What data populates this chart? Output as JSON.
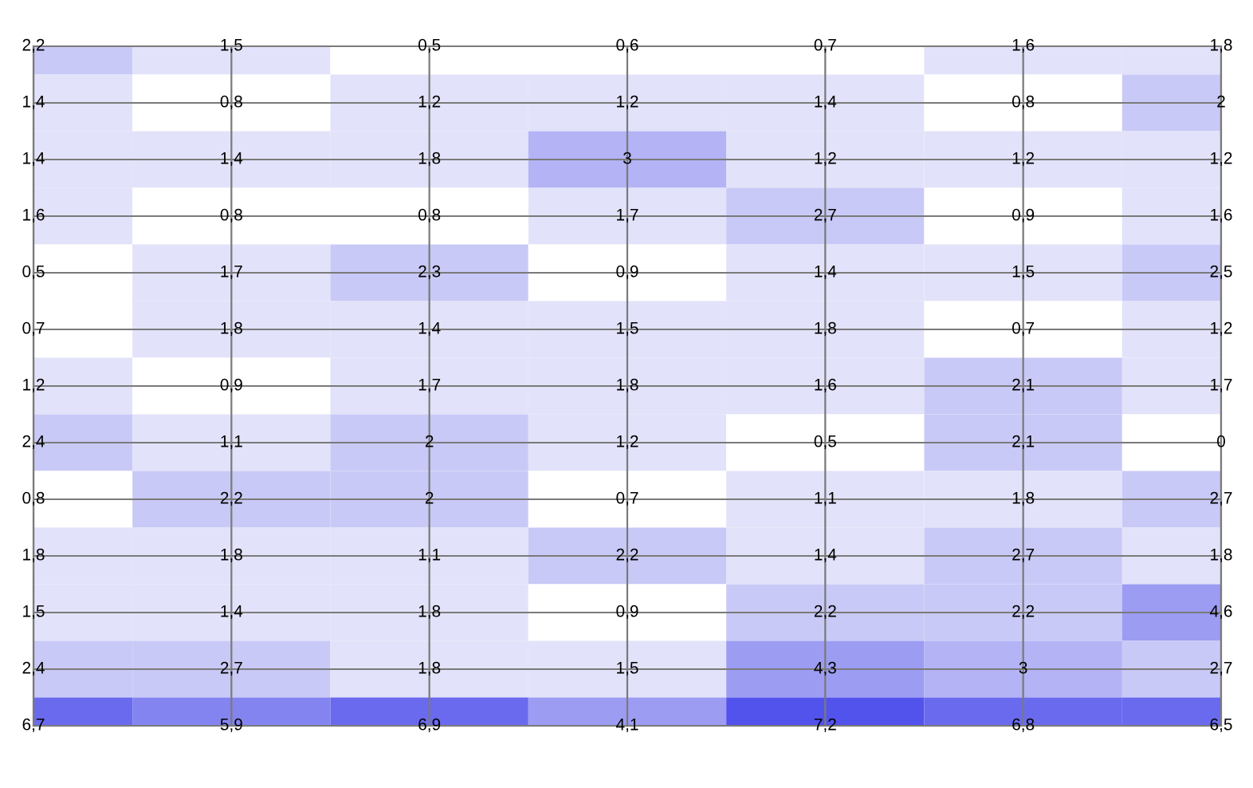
{
  "chart_data": {
    "type": "heatmap",
    "categories": [
      null,
      null,
      null,
      null,
      null,
      null,
      null
    ],
    "y_categories": [
      null,
      null,
      null,
      null,
      null,
      null,
      null,
      null,
      null,
      null,
      null,
      null,
      null
    ],
    "cells": [
      [
        2.2,
        1.5,
        0.5,
        0.6,
        0.7,
        1.6,
        1.8
      ],
      [
        1.4,
        0.8,
        1.2,
        1.2,
        1.4,
        0.8,
        2
      ],
      [
        1.4,
        1.4,
        1.8,
        3,
        1.2,
        1.2,
        1.2
      ],
      [
        1.6,
        0.8,
        0.8,
        1.7,
        2.7,
        0.9,
        1.6
      ],
      [
        0.5,
        1.7,
        2.3,
        0.9,
        1.4,
        1.5,
        2.5
      ],
      [
        0.7,
        1.8,
        1.4,
        1.5,
        1.8,
        0.7,
        1.2
      ],
      [
        1.2,
        0.9,
        1.7,
        1.8,
        1.6,
        2.1,
        1.7
      ],
      [
        2.4,
        1.1,
        2,
        1.2,
        0.5,
        2.1,
        0
      ],
      [
        0.8,
        2.2,
        2,
        0.7,
        1.1,
        1.8,
        2.7
      ],
      [
        1.8,
        1.8,
        1.1,
        2.2,
        1.4,
        2.7,
        1.8
      ],
      [
        1.5,
        1.4,
        1.8,
        0.9,
        2.2,
        2.2,
        4.6
      ],
      [
        2.4,
        2.7,
        1.8,
        1.5,
        4.3,
        3,
        2.7
      ],
      [
        6.7,
        5.9,
        6.9,
        4.1,
        7.2,
        6.8,
        6.5
      ]
    ],
    "cell_labels": [
      [
        "2,2",
        "1,5",
        "0,5",
        "0,6",
        "0,7",
        "1,6",
        "1,8"
      ],
      [
        "1,4",
        "0,8",
        "1,2",
        "1,2",
        "1,4",
        "0,8",
        "2"
      ],
      [
        "1,4",
        "1,4",
        "1,8",
        "3",
        "1,2",
        "1,2",
        "1,2"
      ],
      [
        "1,6",
        "0,8",
        "0,8",
        "1,7",
        "2,7",
        "0,9",
        "1,6"
      ],
      [
        "0,5",
        "1,7",
        "2,3",
        "0,9",
        "1,4",
        "1,5",
        "2,5"
      ],
      [
        "0,7",
        "1,8",
        "1,4",
        "1,5",
        "1,8",
        "0,7",
        "1,2"
      ],
      [
        "1,2",
        "0,9",
        "1,7",
        "1,8",
        "1,6",
        "2,1",
        "1,7"
      ],
      [
        "2,4",
        "1,1",
        "2",
        "1,2",
        "0,5",
        "2,1",
        "0"
      ],
      [
        "0,8",
        "2,2",
        "2",
        "0,7",
        "1,1",
        "1,8",
        "2,7"
      ],
      [
        "1,8",
        "1,8",
        "1,1",
        "2,2",
        "1,4",
        "2,7",
        "1,8"
      ],
      [
        "1,5",
        "1,4",
        "1,8",
        "0,9",
        "2,2",
        "2,2",
        "4,6"
      ],
      [
        "2,4",
        "2,7",
        "1,8",
        "1,5",
        "4,3",
        "3",
        "2,7"
      ],
      [
        "6,7",
        "5,9",
        "6,9",
        "4,1",
        "7,2",
        "6,8",
        "6,5"
      ]
    ],
    "grid": true
  }
}
